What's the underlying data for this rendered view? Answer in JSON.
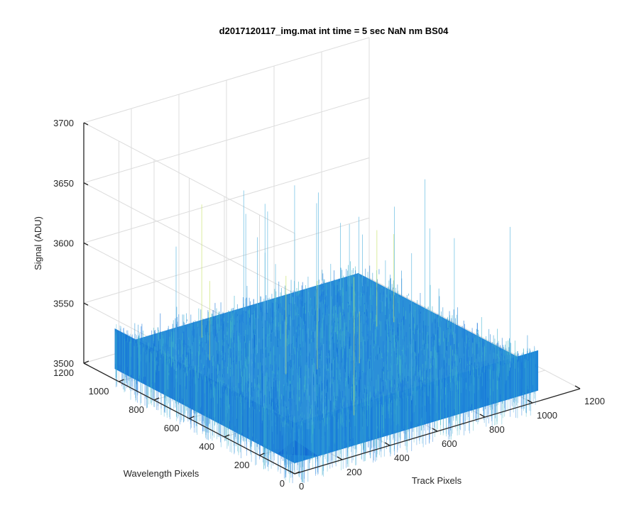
{
  "chart_data": {
    "type": "surface",
    "title": "d2017120117_img.mat int time = 5 sec  NaN nm BS04",
    "xlabel": "Track Pixels",
    "ylabel": "Wavelength Pixels",
    "zlabel": "Signal (ADU)",
    "xlim": [
      0,
      1200
    ],
    "ylim": [
      0,
      1200
    ],
    "zlim": [
      3500,
      3700
    ],
    "x_ticks": [
      "0",
      "200",
      "400",
      "600",
      "800",
      "1000",
      "1200"
    ],
    "y_ticks": [
      "0",
      "200",
      "400",
      "600",
      "800",
      "1000",
      "1200"
    ],
    "z_ticks": [
      "3500",
      "3550",
      "3600",
      "3650",
      "3700"
    ],
    "grid": true,
    "surface": {
      "x_range": [
        0,
        1024
      ],
      "y_range": [
        0,
        1024
      ],
      "mean_signal": 3528,
      "noise_spread": 12,
      "max_spike": 3655,
      "colormap": "parula"
    }
  }
}
